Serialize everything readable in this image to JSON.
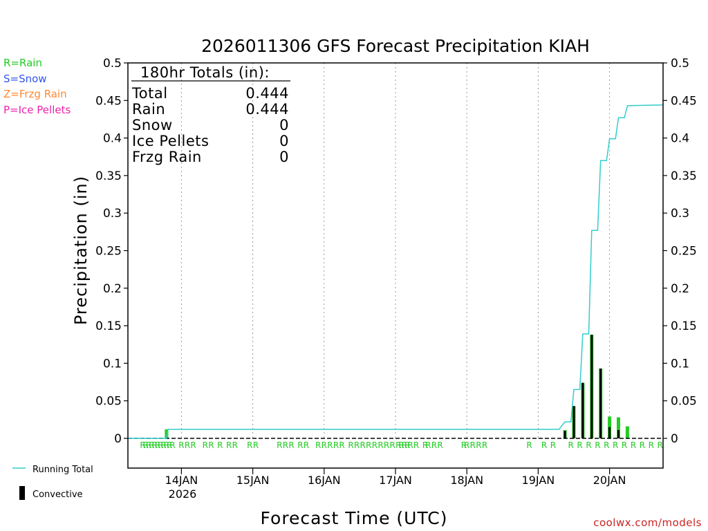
{
  "chart_data": {
    "type": "bar",
    "title": "2026011306 GFS Forecast Precipitation KIAH",
    "xlabel": "Forecast Time (UTC)",
    "ylabel": "Precipitation (in)",
    "ylim": [
      0,
      0.5
    ],
    "y_ticks": [
      0,
      0.05,
      0.1,
      0.15,
      0.2,
      0.25,
      0.3,
      0.35,
      0.4,
      0.45,
      0.5
    ],
    "x_range_hours": [
      6,
      186
    ],
    "x_tick_labels": [
      {
        "hour": 24,
        "label": "14JAN"
      },
      {
        "hour": 48,
        "label": "15JAN"
      },
      {
        "hour": 72,
        "label": "16JAN"
      },
      {
        "hour": 96,
        "label": "17JAN"
      },
      {
        "hour": 120,
        "label": "18JAN"
      },
      {
        "hour": 144,
        "label": "19JAN"
      },
      {
        "hour": 168,
        "label": "20JAN"
      }
    ],
    "year_label": "2026",
    "legend_types": [
      {
        "text": "R=Rain",
        "color": "#22cc22"
      },
      {
        "text": "S=Snow",
        "color": "#3355ee"
      },
      {
        "text": "Z=Frzg Rain",
        "color": "#ff8833"
      },
      {
        "text": "P=Ice Pellets",
        "color": "#ee22aa"
      }
    ],
    "legend_series": [
      {
        "name": "Running Total",
        "color": "#33cccc"
      },
      {
        "name": "Convective",
        "color": "#000000"
      }
    ],
    "totals": {
      "header": "180hr Totals (in):",
      "rows": [
        {
          "label": "Total",
          "value": "0.444"
        },
        {
          "label": "Rain",
          "value": "0.444"
        },
        {
          "label": "Snow",
          "value": "0"
        },
        {
          "label": "Ice Pellets",
          "value": "0"
        },
        {
          "label": "Frzg Rain",
          "value": "0"
        }
      ]
    },
    "precip_bars": [
      {
        "hour": 19,
        "total": 0.012,
        "convective": 0.0
      },
      {
        "hour": 153,
        "total": 0.011,
        "convective": 0.01
      },
      {
        "hour": 156,
        "total": 0.043,
        "convective": 0.043
      },
      {
        "hour": 159,
        "total": 0.074,
        "convective": 0.074
      },
      {
        "hour": 162,
        "total": 0.138,
        "convective": 0.138
      },
      {
        "hour": 165,
        "total": 0.093,
        "convective": 0.093
      },
      {
        "hour": 168,
        "total": 0.029,
        "convective": 0.015
      },
      {
        "hour": 171,
        "total": 0.028,
        "convective": 0.011
      },
      {
        "hour": 174,
        "total": 0.016,
        "convective": 0.0
      }
    ],
    "running_total": [
      {
        "hour": 6,
        "value": 0.0
      },
      {
        "hour": 19,
        "value": 0.0
      },
      {
        "hour": 19.5,
        "value": 0.012
      },
      {
        "hour": 151,
        "value": 0.012
      },
      {
        "hour": 153,
        "value": 0.022
      },
      {
        "hour": 155,
        "value": 0.022
      },
      {
        "hour": 156,
        "value": 0.065
      },
      {
        "hour": 158,
        "value": 0.065
      },
      {
        "hour": 159,
        "value": 0.139
      },
      {
        "hour": 161,
        "value": 0.139
      },
      {
        "hour": 162,
        "value": 0.277
      },
      {
        "hour": 164,
        "value": 0.277
      },
      {
        "hour": 165,
        "value": 0.37
      },
      {
        "hour": 167,
        "value": 0.37
      },
      {
        "hour": 168,
        "value": 0.399
      },
      {
        "hour": 170,
        "value": 0.399
      },
      {
        "hour": 171,
        "value": 0.427
      },
      {
        "hour": 173,
        "value": 0.427
      },
      {
        "hour": 174,
        "value": 0.443
      },
      {
        "hour": 186,
        "value": 0.444
      }
    ],
    "precip_type_markers": {
      "label": "R",
      "hours": [
        11,
        12,
        13,
        14,
        15,
        16,
        17,
        18,
        19,
        20,
        21,
        24,
        26,
        28,
        32,
        34,
        37,
        40,
        42,
        47,
        49,
        57,
        59,
        61,
        64,
        66,
        70,
        72,
        74,
        76,
        78,
        81,
        83,
        85,
        87,
        89,
        91,
        93,
        95,
        97,
        98,
        99,
        100,
        101,
        103,
        106,
        107,
        109,
        111,
        119,
        120,
        122,
        124,
        126,
        141,
        146,
        149,
        155,
        158,
        161,
        164,
        167,
        170,
        173,
        176,
        179,
        182,
        185
      ]
    },
    "watermark": "coolwx.com/models"
  }
}
